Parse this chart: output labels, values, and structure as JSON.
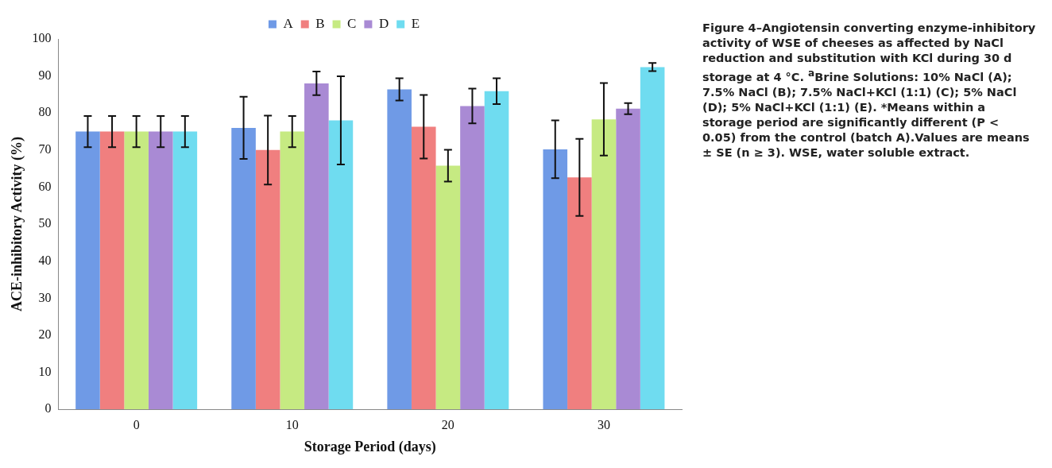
{
  "chart_data": {
    "type": "bar",
    "xlabel": "Storage Period (days)",
    "ylabel": "ACE-inhibitory Activity (%)",
    "categories": [
      "0",
      "10",
      "20",
      "30"
    ],
    "series": [
      {
        "name": "A",
        "color": "#6f9ae6",
        "values": [
          75,
          76,
          86.4,
          70.2
        ],
        "errors": [
          4.2,
          8.4,
          3,
          7.8
        ]
      },
      {
        "name": "B",
        "color": "#f07f7f",
        "values": [
          75,
          70,
          76.3,
          62.6
        ],
        "errors": [
          4.2,
          9.3,
          8.6,
          10.4
        ]
      },
      {
        "name": "C",
        "color": "#c6ea82",
        "values": [
          75,
          75,
          65.8,
          78.3
        ],
        "errors": [
          4.2,
          4.2,
          4.3,
          9.8
        ]
      },
      {
        "name": "D",
        "color": "#a98ad4",
        "values": [
          75,
          88,
          81.9,
          81.2
        ],
        "errors": [
          4.2,
          3.2,
          4.7,
          1.5
        ]
      },
      {
        "name": "E",
        "color": "#6fdcf0",
        "values": [
          75,
          78,
          85.9,
          92.4
        ],
        "errors": [
          4.2,
          11.9,
          3.5,
          1.1
        ]
      }
    ],
    "ylim": [
      0,
      100
    ],
    "yticks": [
      0,
      10,
      20,
      30,
      40,
      50,
      60,
      70,
      80,
      90,
      100
    ],
    "grid": false,
    "legend": "top",
    "annotations": [
      "Figure 4–Angiotensin converting enzyme-inhibitory activity of WSE of cheeses as affected by NaCl reduction and substitution with KCl during 30 d storage at 4 °C. $^{a}$Brine Solutions: 10% NaCl (A); 7.5% NaCl (B); 7.5% NaCl+KCl (1:1) (C); 5% NaCl (D); 5% NaCl+KCl (1:1) (E). *Means within a storage period are significantly different (P < 0.05) from the control (batch A).Values are means ± SE (n ≥ 3). WSE, water soluble extract."
    ]
  }
}
